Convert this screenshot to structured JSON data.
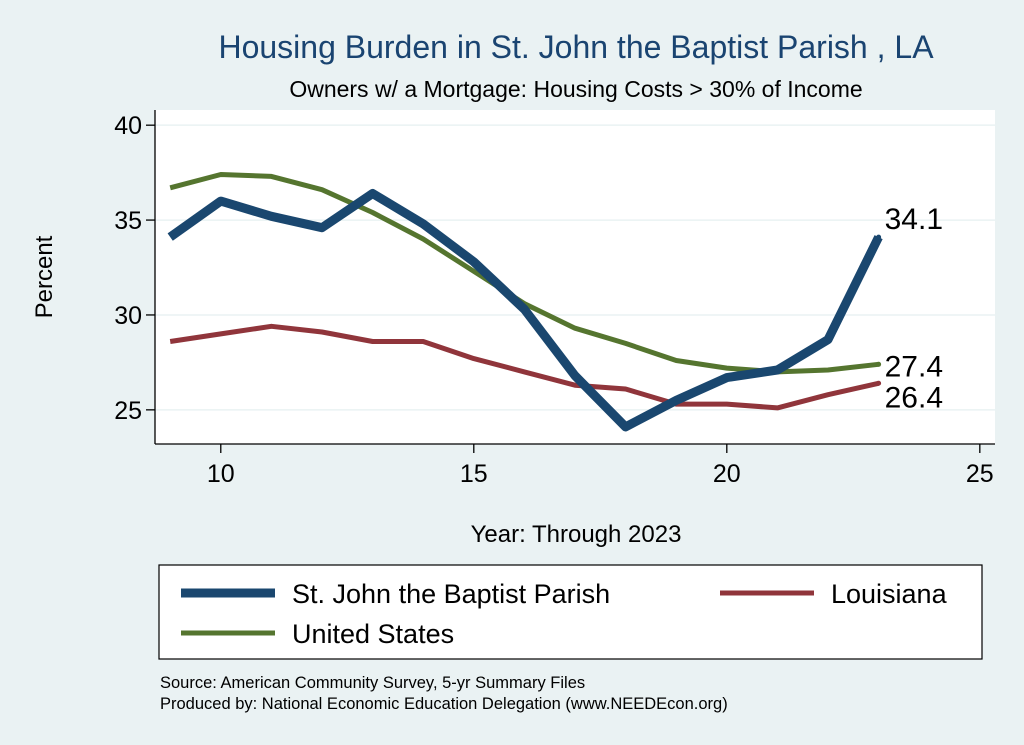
{
  "chart_data": {
    "type": "line",
    "title": "Housing Burden in St. John the Baptist Parish , LA",
    "subtitle": "Owners w/ a Mortgage: Housing Costs > 30% of Income",
    "xlabel": "Year: Through 2023",
    "ylabel": "Percent",
    "xlim": [
      8.7,
      25.3
    ],
    "ylim": [
      23.2,
      40.8
    ],
    "xticks": [
      "10",
      "15",
      "20",
      "25"
    ],
    "yticks": [
      "25",
      "30",
      "35",
      "40"
    ],
    "grid": true,
    "legend_position": "bottom",
    "x": [
      9,
      10,
      11,
      12,
      13,
      14,
      15,
      16,
      17,
      18,
      19,
      20,
      21,
      22,
      23
    ],
    "series": [
      {
        "name": "St. John the Baptist Parish",
        "color": "#1a476f",
        "values": [
          34.1,
          36.0,
          35.2,
          34.6,
          36.4,
          34.8,
          32.8,
          30.3,
          26.8,
          24.1,
          25.5,
          26.7,
          27.1,
          28.7,
          34.1
        ],
        "end_label": "34.1"
      },
      {
        "name": "Louisiana",
        "color": "#90353b",
        "values": [
          28.6,
          29.0,
          29.4,
          29.1,
          28.6,
          28.6,
          27.7,
          27.0,
          26.3,
          26.1,
          25.3,
          25.3,
          25.1,
          25.8,
          26.4
        ],
        "end_label": "26.4"
      },
      {
        "name": "United States",
        "color": "#55752f",
        "values": [
          36.7,
          37.4,
          37.3,
          36.6,
          35.4,
          34.0,
          32.3,
          30.6,
          29.3,
          28.5,
          27.6,
          27.2,
          27.0,
          27.1,
          27.4
        ],
        "end_label": "27.4"
      }
    ]
  },
  "source_line": "Source: American Community Survey, 5-yr Summary Files",
  "produced_line": "Produced by: National Economic Education Delegation (www.NEEDEcon.org)"
}
